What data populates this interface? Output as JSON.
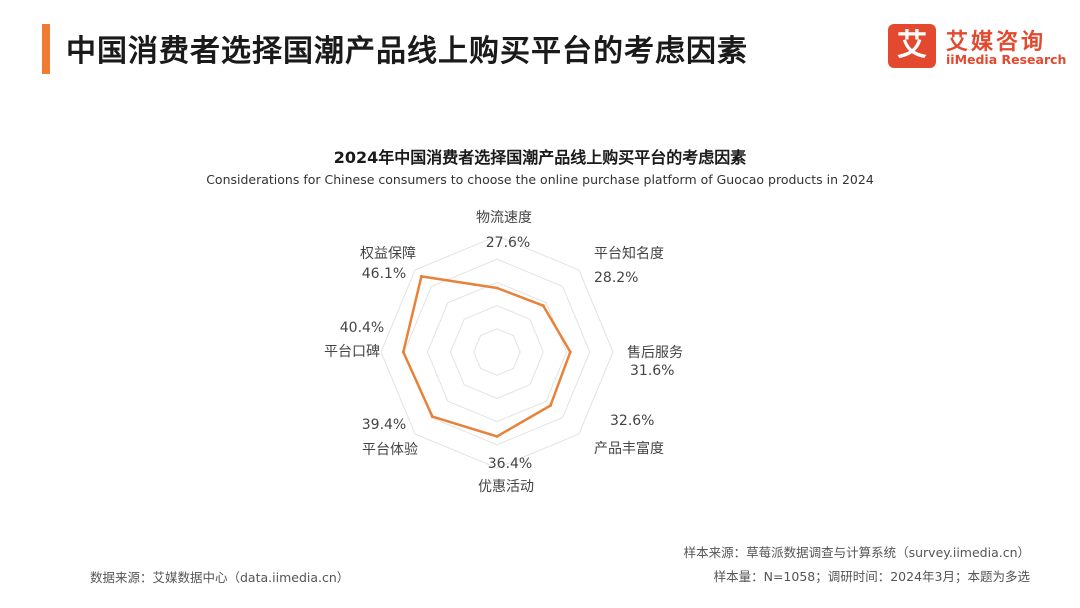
{
  "header": {
    "title": "中国消费者选择国潮产品线上购买平台的考虑因素"
  },
  "logo": {
    "mark": "艾",
    "name_cn": "艾媒咨询",
    "name_en": "iiMedia Research"
  },
  "colors": {
    "accent": "#f07b32",
    "series": "#e8823a",
    "grid": "#e3e3e3",
    "logo_red": "#e2492f"
  },
  "chart_data": {
    "type": "radar",
    "title": "2024年中国消费者选择国潮产品线上购买平台的考虑因素",
    "subtitle": "Considerations for Chinese consumers to choose the online purchase platform of Guocao products in 2024",
    "categories": [
      "物流速度",
      "平台知名度",
      "售后服务",
      "产品丰富度",
      "优惠活动",
      "平台体验",
      "平台口碑",
      "权益保障"
    ],
    "values": [
      27.6,
      28.2,
      31.6,
      32.6,
      36.4,
      39.4,
      40.4,
      46.1
    ],
    "value_labels": [
      "27.6%",
      "28.2%",
      "31.6%",
      "32.6%",
      "36.4%",
      "39.4%",
      "40.4%",
      "46.1%"
    ],
    "unit": "%",
    "range": [
      0,
      50
    ],
    "grid_levels": 5,
    "legend": "none"
  },
  "footer": {
    "source_left": "数据来源：艾媒数据中心（data.iimedia.cn）",
    "sample_source": "样本来源：草莓派数据调查与计算系统（survey.iimedia.cn）",
    "sample_info": "样本量：N=1058；调研时间：2024年3月；本题为多选"
  }
}
